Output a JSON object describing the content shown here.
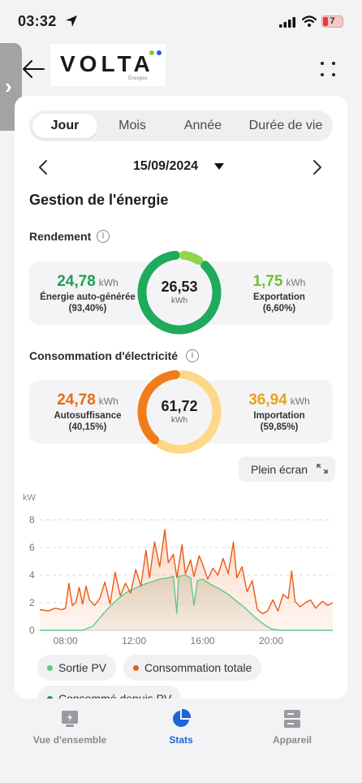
{
  "status_bar": {
    "time": "03:32",
    "battery": "7"
  },
  "header": {
    "brand": "VOLTA",
    "brand_sub": "Énergies"
  },
  "tabs": [
    {
      "label": "Jour",
      "active": true
    },
    {
      "label": "Mois",
      "active": false
    },
    {
      "label": "Année",
      "active": false
    },
    {
      "label": "Durée de vie",
      "active": false
    }
  ],
  "date": "15/09/2024",
  "section_title": "Gestion de l'énergie",
  "rendement": {
    "label": "Rendement",
    "left": {
      "value": "24,78",
      "unit": "kWh",
      "label": "Énergie auto-générée",
      "pct": "(93,40%)"
    },
    "center": {
      "value": "26,53",
      "unit": "kWh"
    },
    "right": {
      "value": "1,75",
      "unit": "kWh",
      "label": "Exportation",
      "pct": "(6,60%)"
    },
    "ring_fraction_primary": 0.934,
    "colors": {
      "primary": "#1faa5c",
      "secondary": "#8fd64a"
    }
  },
  "consommation": {
    "label": "Consommation d'électricité",
    "left": {
      "value": "24,78",
      "unit": "kWh",
      "label": "Autosuffisance",
      "pct": "(40,15%)"
    },
    "center": {
      "value": "61,72",
      "unit": "kWh"
    },
    "right": {
      "value": "36,94",
      "unit": "kWh",
      "label": "Importation",
      "pct": "(59,85%)"
    },
    "ring_fraction_primary": 0.4015,
    "colors": {
      "primary": "#f07d1a",
      "secondary": "#fdd889"
    }
  },
  "fullscreen_label": "Plein écran",
  "chart_data": {
    "type": "area",
    "ylabel": "kW",
    "ylim": [
      0,
      8
    ],
    "yticks": [
      0,
      2,
      4,
      6,
      8
    ],
    "xlim": [
      6.5,
      23.6
    ],
    "xticks": [
      {
        "value": 8,
        "label": "08:00"
      },
      {
        "value": 12,
        "label": "12:00"
      },
      {
        "value": 16,
        "label": "16:00"
      },
      {
        "value": 20,
        "label": "20:00"
      }
    ],
    "series": [
      {
        "name": "Sortie PV",
        "color": "#5ec98d",
        "points": [
          [
            6.5,
            0
          ],
          [
            9,
            0
          ],
          [
            9.6,
            0.3
          ],
          [
            10,
            0.9
          ],
          [
            10.5,
            1.6
          ],
          [
            11,
            2.2
          ],
          [
            11.5,
            2.7
          ],
          [
            12,
            3
          ],
          [
            12.5,
            3.3
          ],
          [
            13,
            3.5
          ],
          [
            13.5,
            3.7
          ],
          [
            14,
            3.8
          ],
          [
            14.3,
            3.9
          ],
          [
            14.5,
            1.2
          ],
          [
            14.6,
            3.9
          ],
          [
            15,
            4
          ],
          [
            15.3,
            3.8
          ],
          [
            15.5,
            1.8
          ],
          [
            15.7,
            3.6
          ],
          [
            16,
            3.7
          ],
          [
            16.5,
            3.3
          ],
          [
            17,
            3
          ],
          [
            17.5,
            2.6
          ],
          [
            18,
            2.1
          ],
          [
            18.5,
            1.6
          ],
          [
            19,
            1
          ],
          [
            19.5,
            0.5
          ],
          [
            20,
            0.1
          ],
          [
            20.5,
            0
          ],
          [
            23.6,
            0
          ]
        ]
      },
      {
        "name": "Consommation totale",
        "color": "#ea5a18",
        "points": [
          [
            6.5,
            1.5
          ],
          [
            7,
            1.4
          ],
          [
            7.4,
            1.6
          ],
          [
            7.8,
            1.5
          ],
          [
            8,
            1.6
          ],
          [
            8.2,
            3.4
          ],
          [
            8.4,
            1.8
          ],
          [
            8.6,
            2
          ],
          [
            8.8,
            3.1
          ],
          [
            9,
            1.9
          ],
          [
            9.2,
            3.2
          ],
          [
            9.4,
            2.2
          ],
          [
            9.7,
            1.8
          ],
          [
            10,
            2.3
          ],
          [
            10.3,
            3.5
          ],
          [
            10.6,
            1.9
          ],
          [
            10.9,
            4.2
          ],
          [
            11.2,
            2.5
          ],
          [
            11.5,
            3.4
          ],
          [
            11.8,
            2.7
          ],
          [
            12.1,
            4.4
          ],
          [
            12.4,
            3.2
          ],
          [
            12.7,
            5.8
          ],
          [
            12.9,
            3.8
          ],
          [
            13.2,
            6.4
          ],
          [
            13.5,
            4.6
          ],
          [
            13.8,
            7.3
          ],
          [
            14,
            4.9
          ],
          [
            14.3,
            5.5
          ],
          [
            14.5,
            3.8
          ],
          [
            14.8,
            6.2
          ],
          [
            15,
            4.1
          ],
          [
            15.3,
            5.1
          ],
          [
            15.5,
            3.9
          ],
          [
            15.8,
            5.4
          ],
          [
            16,
            4.8
          ],
          [
            16.3,
            3.7
          ],
          [
            16.6,
            4.5
          ],
          [
            16.9,
            4
          ],
          [
            17.2,
            5.2
          ],
          [
            17.5,
            4.1
          ],
          [
            17.8,
            6.4
          ],
          [
            18,
            3.8
          ],
          [
            18.3,
            4.6
          ],
          [
            18.6,
            2.8
          ],
          [
            18.9,
            3.6
          ],
          [
            19.2,
            1.5
          ],
          [
            19.5,
            1.2
          ],
          [
            19.8,
            1.4
          ],
          [
            20.1,
            2.2
          ],
          [
            20.4,
            1.4
          ],
          [
            20.7,
            2.6
          ],
          [
            21,
            2.3
          ],
          [
            21.2,
            4.3
          ],
          [
            21.4,
            2.1
          ],
          [
            21.7,
            1.7
          ],
          [
            22,
            2
          ],
          [
            22.3,
            2.2
          ],
          [
            22.6,
            1.6
          ],
          [
            23,
            2.1
          ],
          [
            23.3,
            1.8
          ],
          [
            23.6,
            2
          ]
        ]
      }
    ]
  },
  "legend": [
    {
      "name": "Sortie PV",
      "color": "#5ec98d"
    },
    {
      "name": "Consommation totale",
      "color": "#ea5a18"
    },
    {
      "name": "Consommé depuis PV",
      "color": "#1a8a4a"
    }
  ],
  "bottom_nav": [
    {
      "label": "Vue d'ensemble",
      "icon": "overview-icon",
      "active": false
    },
    {
      "label": "Stats",
      "icon": "pie-chart-icon",
      "active": true
    },
    {
      "label": "Appareil",
      "icon": "device-icon",
      "active": false
    }
  ]
}
